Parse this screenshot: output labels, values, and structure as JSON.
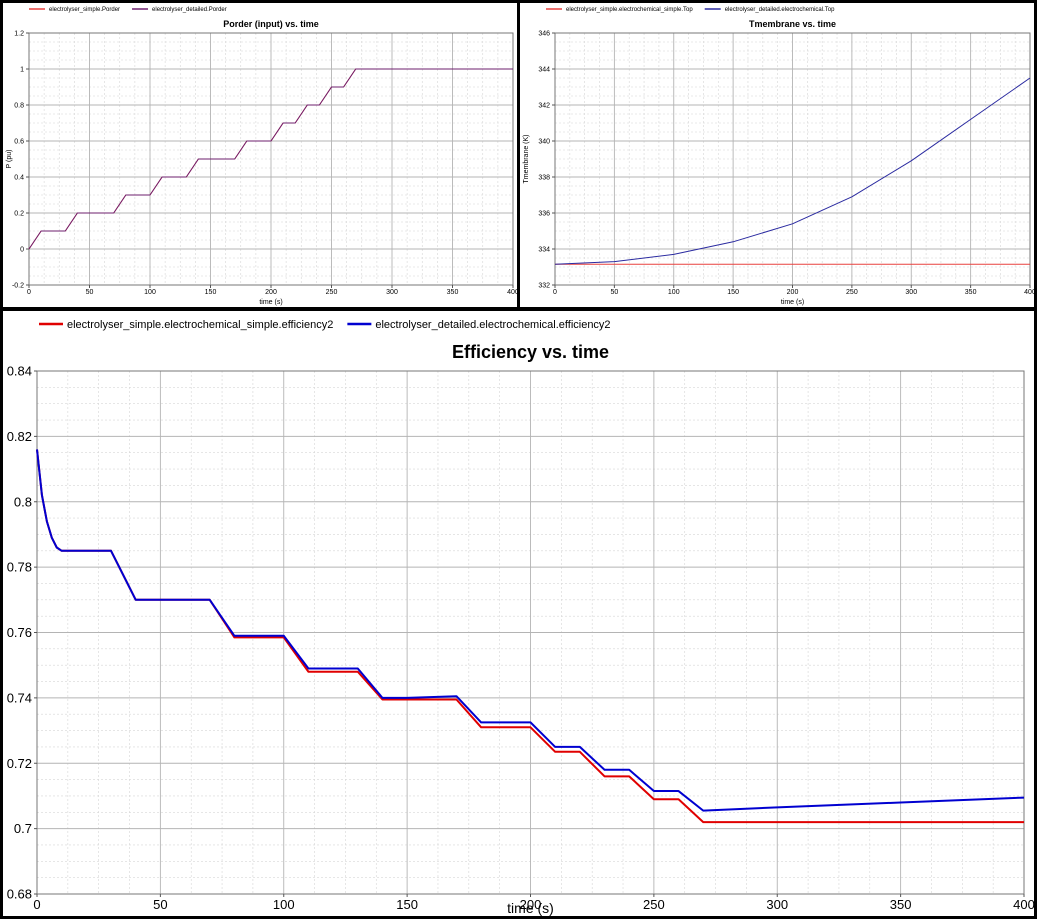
{
  "chart_data": [
    {
      "id": "porder",
      "type": "line",
      "title": "Porder (input) vs. time",
      "xlabel": "time (s)",
      "ylabel": "P (pu)",
      "xlim": [
        0,
        400
      ],
      "ylim": [
        -0.2,
        1.2
      ],
      "xticks": [
        0,
        50,
        100,
        150,
        200,
        250,
        300,
        350,
        400
      ],
      "yticks": [
        -0.2,
        0,
        0.2,
        0.4,
        0.6,
        0.8,
        1,
        1.2
      ],
      "ytick_labels": [
        "-0.2",
        "0",
        "0.2",
        "0.4",
        "0.6",
        "0.8",
        "1",
        "1.2"
      ],
      "grid": true,
      "legend_position": "top-left",
      "series": [
        {
          "name": "electrolyser_simple.Porder",
          "color": "#e8413e",
          "x": [
            0,
            10,
            30,
            40,
            70,
            80,
            100,
            110,
            130,
            140,
            170,
            180,
            200,
            210,
            220,
            230,
            240,
            250,
            260,
            270,
            400
          ],
          "y": [
            0,
            0.1,
            0.1,
            0.2,
            0.2,
            0.3,
            0.3,
            0.4,
            0.4,
            0.5,
            0.5,
            0.6,
            0.6,
            0.7,
            0.7,
            0.8,
            0.8,
            0.9,
            0.9,
            1.0,
            1.0
          ]
        },
        {
          "name": "electrolyser_detailed.Porder",
          "color": "#6e1f6e",
          "x": [
            0,
            10,
            30,
            40,
            70,
            80,
            100,
            110,
            130,
            140,
            170,
            180,
            200,
            210,
            220,
            230,
            240,
            250,
            260,
            270,
            400
          ],
          "y": [
            0,
            0.1,
            0.1,
            0.2,
            0.2,
            0.3,
            0.3,
            0.4,
            0.4,
            0.5,
            0.5,
            0.6,
            0.6,
            0.7,
            0.7,
            0.8,
            0.8,
            0.9,
            0.9,
            1.0,
            1.0
          ]
        }
      ]
    },
    {
      "id": "tmembrane",
      "type": "line",
      "title": "Tmembrane vs. time",
      "xlabel": "time (s)",
      "ylabel": "Tmembrane (K)",
      "xlim": [
        0,
        400
      ],
      "ylim": [
        332,
        346
      ],
      "xticks": [
        0,
        50,
        100,
        150,
        200,
        250,
        300,
        350,
        400
      ],
      "yticks": [
        332,
        334,
        336,
        338,
        340,
        342,
        344,
        346
      ],
      "ytick_labels": [
        "332",
        "334",
        "336",
        "338",
        "340",
        "342",
        "344",
        "346"
      ],
      "grid": true,
      "legend_position": "top-left",
      "series": [
        {
          "name": "electrolyser_simple.electrochemical_simple.Top",
          "color": "#e8413e",
          "x": [
            0,
            400
          ],
          "y": [
            333.15,
            333.15
          ]
        },
        {
          "name": "electrolyser_detailed.electrochemical.Top",
          "color": "#2a2aa0",
          "x": [
            0,
            50,
            100,
            150,
            200,
            250,
            300,
            350,
            400
          ],
          "y": [
            333.15,
            333.3,
            333.7,
            334.4,
            335.4,
            336.9,
            338.9,
            341.2,
            343.5
          ]
        }
      ]
    },
    {
      "id": "efficiency",
      "type": "line",
      "title": "Efficiency  vs. time",
      "xlabel": "time (s)",
      "ylabel": "",
      "xlim": [
        0,
        400
      ],
      "ylim": [
        0.68,
        0.84
      ],
      "xticks": [
        0,
        50,
        100,
        150,
        200,
        250,
        300,
        350,
        400
      ],
      "yticks": [
        0.68,
        0.7,
        0.72,
        0.74,
        0.76,
        0.78,
        0.8,
        0.82,
        0.84
      ],
      "ytick_labels": [
        "0.68",
        "0.7",
        "0.72",
        "0.74",
        "0.76",
        "0.78",
        "0.8",
        "0.82",
        "0.84"
      ],
      "grid": true,
      "legend_position": "top-left",
      "series": [
        {
          "name": "electrolyser_simple.electrochemical_simple.efficiency2",
          "color": "#e00000",
          "x": [
            0,
            2,
            4,
            6,
            8,
            10,
            30,
            40,
            70,
            80,
            100,
            110,
            130,
            140,
            170,
            180,
            200,
            210,
            220,
            230,
            240,
            250,
            260,
            270,
            400
          ],
          "y": [
            0.816,
            0.802,
            0.794,
            0.789,
            0.786,
            0.785,
            0.785,
            0.77,
            0.77,
            0.7585,
            0.7585,
            0.748,
            0.748,
            0.7395,
            0.7395,
            0.731,
            0.731,
            0.7235,
            0.7235,
            0.716,
            0.716,
            0.709,
            0.709,
            0.702,
            0.702
          ]
        },
        {
          "name": "electrolyser_detailed.electrochemical.efficiency2",
          "color": "#0000d0",
          "x": [
            0,
            2,
            4,
            6,
            8,
            10,
            30,
            40,
            70,
            80,
            100,
            110,
            130,
            140,
            150,
            170,
            180,
            200,
            210,
            220,
            230,
            240,
            250,
            260,
            270,
            300,
            350,
            400
          ],
          "y": [
            0.816,
            0.802,
            0.794,
            0.789,
            0.786,
            0.785,
            0.785,
            0.77,
            0.77,
            0.759,
            0.759,
            0.749,
            0.749,
            0.74,
            0.74,
            0.7405,
            0.7325,
            0.7325,
            0.725,
            0.725,
            0.718,
            0.718,
            0.7115,
            0.7115,
            0.7055,
            0.7065,
            0.708,
            0.7095
          ]
        }
      ]
    }
  ]
}
